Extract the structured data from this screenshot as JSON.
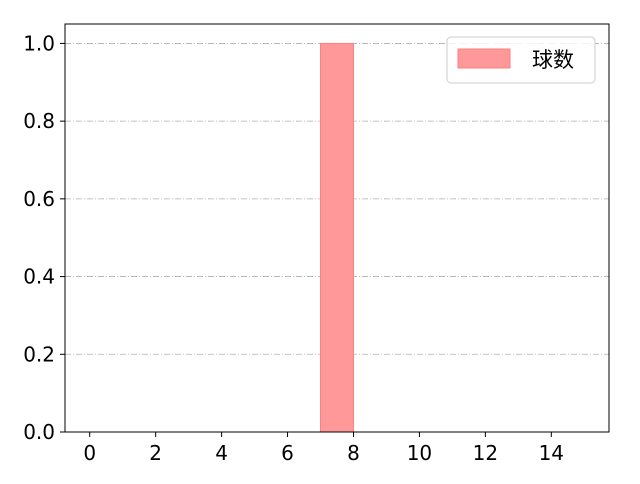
{
  "chart_data": {
    "type": "bar",
    "title": "",
    "xlabel": "",
    "ylabel": "",
    "xlim": [
      -0.75,
      15.75
    ],
    "ylim": [
      0,
      1.05
    ],
    "xticks": [
      "0",
      "2",
      "4",
      "6",
      "8",
      "10",
      "12",
      "14"
    ],
    "yticks": [
      "0.0",
      "0.2",
      "0.4",
      "0.6",
      "0.8",
      "1.0"
    ],
    "grid": "horizontal dash-dot",
    "legend_placement": "top-right",
    "series": [
      {
        "name": "球数",
        "color": "#ff9999",
        "edge_color": "#ff7f7f",
        "bins": [
          {
            "start": 7,
            "end": 8,
            "value": 1.0
          }
        ]
      }
    ]
  }
}
